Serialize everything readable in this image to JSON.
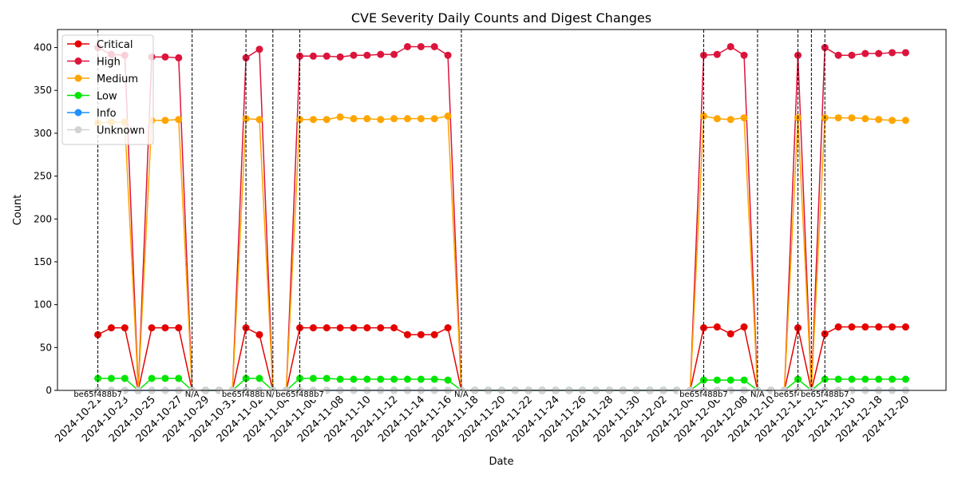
{
  "chart_data": {
    "type": "line",
    "title": "CVE Severity Daily Counts and Digest Changes",
    "x_label": "Date",
    "y_label": "Count",
    "x": [
      "2024-10-21",
      "2024-10-22",
      "2024-10-23",
      "2024-10-24",
      "2024-10-25",
      "2024-10-26",
      "2024-10-27",
      "2024-10-28",
      "2024-10-29",
      "2024-10-30",
      "2024-10-31",
      "2024-11-01",
      "2024-11-02",
      "2024-11-03",
      "2024-11-04",
      "2024-11-05",
      "2024-11-06",
      "2024-11-07",
      "2024-11-08",
      "2024-11-09",
      "2024-11-10",
      "2024-11-11",
      "2024-11-12",
      "2024-11-13",
      "2024-11-14",
      "2024-11-15",
      "2024-11-16",
      "2024-11-17",
      "2024-11-18",
      "2024-11-19",
      "2024-11-20",
      "2024-11-21",
      "2024-11-22",
      "2024-11-23",
      "2024-11-24",
      "2024-11-25",
      "2024-11-26",
      "2024-11-27",
      "2024-11-28",
      "2024-11-29",
      "2024-11-30",
      "2024-12-01",
      "2024-12-02",
      "2024-12-03",
      "2024-12-04",
      "2024-12-05",
      "2024-12-06",
      "2024-12-07",
      "2024-12-08",
      "2024-12-09",
      "2024-12-10",
      "2024-12-11",
      "2024-12-12",
      "2024-12-13",
      "2024-12-14",
      "2024-12-15",
      "2024-12-16",
      "2024-12-17",
      "2024-12-18",
      "2024-12-19",
      "2024-12-20"
    ],
    "xticks": [
      "2024-10-21",
      "2024-10-23",
      "2024-10-25",
      "2024-10-27",
      "2024-10-29",
      "2024-10-31",
      "2024-11-02",
      "2024-11-04",
      "2024-11-06",
      "2024-11-08",
      "2024-11-10",
      "2024-11-12",
      "2024-11-14",
      "2024-11-16",
      "2024-11-18",
      "2024-11-20",
      "2024-11-22",
      "2024-11-24",
      "2024-11-26",
      "2024-11-28",
      "2024-11-30",
      "2024-12-02",
      "2024-12-04",
      "2024-12-06",
      "2024-12-08",
      "2024-12-10",
      "2024-12-12",
      "2024-12-14",
      "2024-12-16",
      "2024-12-18",
      "2024-12-20"
    ],
    "ylim": [
      0,
      421
    ],
    "yticks": [
      0,
      50,
      100,
      150,
      200,
      250,
      300,
      350,
      400
    ],
    "legend": "upper left",
    "series": [
      {
        "name": "Critical",
        "color": "#e60000",
        "values": [
          65,
          73,
          73,
          0,
          73,
          73,
          73,
          0,
          0,
          0,
          0,
          73,
          65,
          0,
          0,
          73,
          73,
          73,
          73,
          73,
          73,
          73,
          73,
          65,
          65,
          65,
          73,
          0,
          0,
          0,
          0,
          0,
          0,
          0,
          0,
          0,
          0,
          0,
          0,
          0,
          0,
          0,
          0,
          0,
          0,
          73,
          74,
          66,
          74,
          0,
          0,
          0,
          73,
          0,
          66,
          74,
          74,
          74,
          74,
          74,
          74
        ]
      },
      {
        "name": "High",
        "color": "#dc143c",
        "values": [
          400,
          392,
          391,
          0,
          389,
          389,
          388,
          0,
          0,
          0,
          0,
          388,
          398,
          0,
          0,
          390,
          390,
          390,
          389,
          391,
          391,
          392,
          392,
          401,
          401,
          401,
          391,
          0,
          0,
          0,
          0,
          0,
          0,
          0,
          0,
          0,
          0,
          0,
          0,
          0,
          0,
          0,
          0,
          0,
          0,
          391,
          392,
          401,
          391,
          0,
          0,
          0,
          391,
          0,
          400,
          391,
          391,
          393,
          393,
          394,
          394
        ]
      },
      {
        "name": "Medium",
        "color": "#ffa500",
        "values": [
          312,
          313,
          313,
          0,
          315,
          315,
          316,
          0,
          0,
          0,
          0,
          317,
          316,
          0,
          0,
          316,
          316,
          316,
          319,
          317,
          317,
          316,
          317,
          317,
          317,
          317,
          320,
          0,
          0,
          0,
          0,
          0,
          0,
          0,
          0,
          0,
          0,
          0,
          0,
          0,
          0,
          0,
          0,
          0,
          0,
          320,
          317,
          316,
          318,
          0,
          0,
          0,
          318,
          0,
          318,
          318,
          318,
          317,
          316,
          315,
          315
        ]
      },
      {
        "name": "Low",
        "color": "#00e600",
        "values": [
          14,
          14,
          14,
          0,
          14,
          14,
          14,
          0,
          0,
          0,
          0,
          14,
          14,
          0,
          0,
          14,
          14,
          14,
          13,
          13,
          13,
          13,
          13,
          13,
          13,
          13,
          12,
          0,
          0,
          0,
          0,
          0,
          0,
          0,
          0,
          0,
          0,
          0,
          0,
          0,
          0,
          0,
          0,
          0,
          0,
          12,
          12,
          12,
          12,
          0,
          0,
          0,
          13,
          0,
          13,
          13,
          13,
          13,
          13,
          13,
          13
        ]
      },
      {
        "name": "Info",
        "color": "#1e90ff",
        "values": [
          0,
          0,
          0,
          0,
          0,
          0,
          0,
          0,
          0,
          0,
          0,
          0,
          0,
          0,
          0,
          0,
          0,
          0,
          0,
          0,
          0,
          0,
          0,
          0,
          0,
          0,
          0,
          0,
          0,
          0,
          0,
          0,
          0,
          0,
          0,
          0,
          0,
          0,
          0,
          0,
          0,
          0,
          0,
          0,
          0,
          0,
          0,
          0,
          0,
          0,
          0,
          0,
          0,
          0,
          0,
          0,
          0,
          0,
          0,
          0,
          0
        ]
      },
      {
        "name": "Unknown",
        "color": "#d3d3d3",
        "values": [
          0,
          0,
          0,
          0,
          0,
          0,
          0,
          0,
          0,
          0,
          0,
          0,
          0,
          0,
          0,
          0,
          0,
          0,
          0,
          0,
          0,
          0,
          0,
          0,
          0,
          0,
          0,
          0,
          0,
          0,
          0,
          0,
          0,
          0,
          0,
          0,
          0,
          0,
          0,
          0,
          0,
          0,
          0,
          0,
          0,
          0,
          0,
          0,
          0,
          0,
          0,
          0,
          0,
          0,
          0,
          0,
          0,
          0,
          0,
          0,
          0
        ]
      }
    ],
    "digest_changes": [
      {
        "x": "2024-10-21",
        "label": "be65f488b7"
      },
      {
        "x": "2024-10-28",
        "label": "N/A"
      },
      {
        "x": "2024-11-01",
        "label": "be65f488b7"
      },
      {
        "x": "2024-11-03",
        "label": "N/A"
      },
      {
        "x": "2024-11-05",
        "label": "be65f488b7"
      },
      {
        "x": "2024-11-17",
        "label": "N/A"
      },
      {
        "x": "2024-12-05",
        "label": "be65f488b7"
      },
      {
        "x": "2024-12-09",
        "label": "N/A"
      },
      {
        "x": "2024-12-12",
        "label": "be65f488b7"
      },
      {
        "x": "2024-12-13",
        "label": "N/A"
      },
      {
        "x": "2024-12-14",
        "label": "be65f488b7"
      }
    ]
  }
}
